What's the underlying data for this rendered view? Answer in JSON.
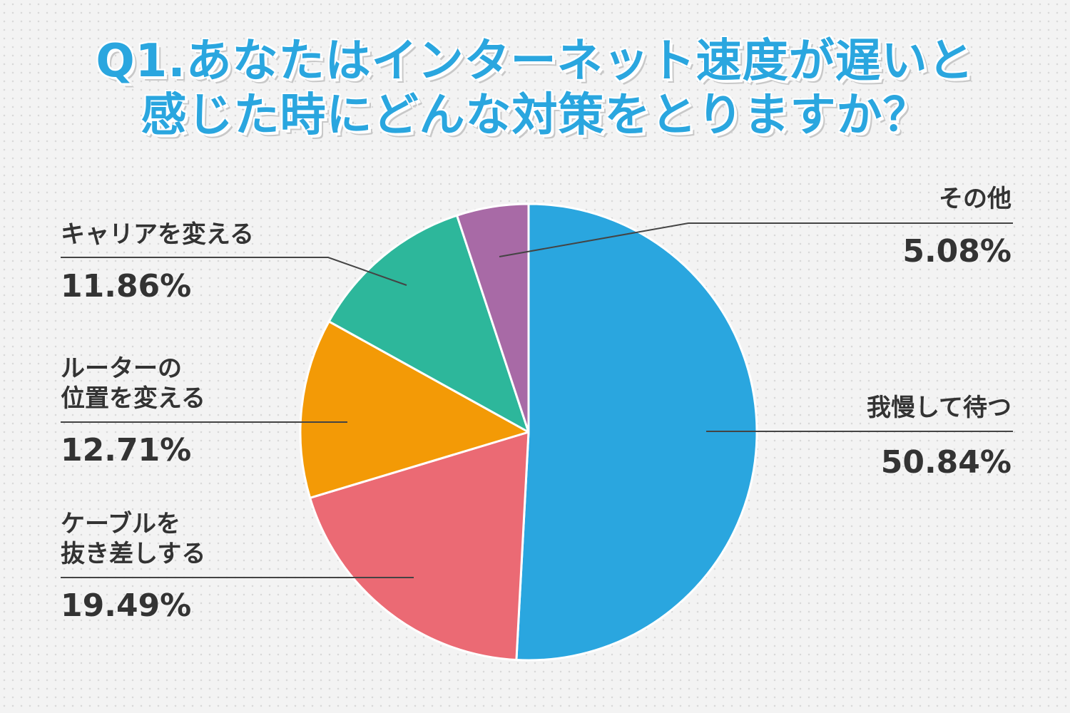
{
  "title": {
    "line1": "Q1.あなたはインターネット速度が遅いと",
    "line2": "感じた時にどんな対策をとりますか？"
  },
  "chart_data": {
    "type": "pie",
    "title": "Q1.あなたはインターネット速度が遅いと感じた時にどんな対策をとりますか？",
    "slices": [
      {
        "label": "我慢して待つ",
        "value": 50.84,
        "pct_label": "50.84%",
        "color": "#2aa6df"
      },
      {
        "label": "ケーブルを抜き差しする",
        "value": 19.49,
        "pct_label": "19.49%",
        "color": "#eb6a74"
      },
      {
        "label": "ルーターの位置を変える",
        "value": 12.71,
        "pct_label": "12.71%",
        "color": "#f39a06"
      },
      {
        "label": "キャリアを変える",
        "value": 11.86,
        "pct_label": "11.86%",
        "color": "#2db79b"
      },
      {
        "label": "その他",
        "value": 5.08,
        "pct_label": "5.08%",
        "color": "#a86aa6"
      }
    ],
    "start_angle": "12 o'clock",
    "direction": "clockwise",
    "legend": "none (labels beside slices)"
  },
  "labels": {
    "gaman": {
      "lines": [
        "我慢して待つ"
      ],
      "pct": "50.84%"
    },
    "cable": {
      "lines": [
        "ケーブルを",
        "抜き差しする"
      ],
      "pct": "19.49%"
    },
    "router": {
      "lines": [
        "ルーターの",
        "位置を変える"
      ],
      "pct": "12.71%"
    },
    "carrier": {
      "lines": [
        "キャリアを変える"
      ],
      "pct": "11.86%"
    },
    "other": {
      "lines": [
        "その他"
      ],
      "pct": "5.08%"
    }
  },
  "colors": {
    "title": "#2aa6df",
    "label_text": "#333333",
    "leader_line": "#444444",
    "slice_border": "#ffffff"
  }
}
